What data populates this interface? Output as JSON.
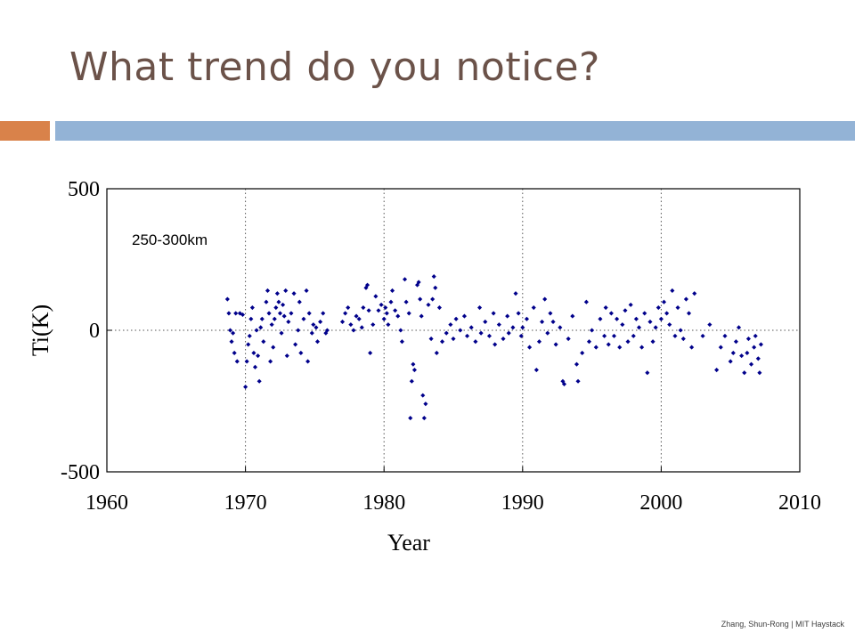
{
  "slide": {
    "title": "What trend do you notice?",
    "footer": "Zhang, Shun-Rong | MIT Haystack",
    "accent_orange": "#d9824a",
    "accent_blue": "#93b3d6",
    "title_color": "#6b5249"
  },
  "chart_data": {
    "type": "scatter",
    "xlabel": "Year",
    "ylabel": "Ti(K)",
    "annotation": "250-300km",
    "xlim": [
      1960,
      2010
    ],
    "ylim": [
      -500,
      500
    ],
    "xticks": [
      1960,
      1970,
      1980,
      1990,
      2000,
      2010
    ],
    "yticks": [
      -500,
      0,
      500
    ],
    "grid": "dotted vertical at decade ticks, dotted horizontal at 0",
    "marker_color": "#00008b",
    "points": [
      [
        1968.7,
        110
      ],
      [
        1968.8,
        60
      ],
      [
        1968.9,
        0
      ],
      [
        1969.0,
        -40
      ],
      [
        1969.1,
        -10
      ],
      [
        1969.2,
        -80
      ],
      [
        1969.3,
        60
      ],
      [
        1969.4,
        -110
      ],
      [
        1969.6,
        60
      ],
      [
        1969.8,
        55
      ],
      [
        1970.0,
        -200
      ],
      [
        1970.1,
        -110
      ],
      [
        1970.2,
        -50
      ],
      [
        1970.3,
        -20
      ],
      [
        1970.4,
        40
      ],
      [
        1970.5,
        80
      ],
      [
        1970.6,
        -80
      ],
      [
        1970.7,
        -130
      ],
      [
        1970.8,
        0
      ],
      [
        1970.9,
        -90
      ],
      [
        1971.0,
        -180
      ],
      [
        1971.1,
        10
      ],
      [
        1971.2,
        40
      ],
      [
        1971.3,
        -40
      ],
      [
        1971.5,
        100
      ],
      [
        1971.6,
        140
      ],
      [
        1971.7,
        60
      ],
      [
        1971.8,
        -110
      ],
      [
        1971.9,
        20
      ],
      [
        1972.0,
        -60
      ],
      [
        1972.1,
        40
      ],
      [
        1972.2,
        80
      ],
      [
        1972.3,
        130
      ],
      [
        1972.4,
        100
      ],
      [
        1972.5,
        60
      ],
      [
        1972.6,
        -10
      ],
      [
        1972.7,
        90
      ],
      [
        1972.8,
        50
      ],
      [
        1972.9,
        140
      ],
      [
        1973.0,
        -90
      ],
      [
        1973.1,
        30
      ],
      [
        1973.3,
        60
      ],
      [
        1973.5,
        130
      ],
      [
        1973.6,
        -50
      ],
      [
        1973.8,
        0
      ],
      [
        1973.9,
        100
      ],
      [
        1974.0,
        -80
      ],
      [
        1974.2,
        40
      ],
      [
        1974.4,
        140
      ],
      [
        1974.5,
        -110
      ],
      [
        1974.6,
        60
      ],
      [
        1974.8,
        -10
      ],
      [
        1974.9,
        20
      ],
      [
        1975.1,
        10
      ],
      [
        1975.2,
        -40
      ],
      [
        1975.4,
        30
      ],
      [
        1975.6,
        60
      ],
      [
        1975.8,
        -10
      ],
      [
        1975.9,
        0
      ],
      [
        1977.0,
        30
      ],
      [
        1977.2,
        60
      ],
      [
        1977.4,
        80
      ],
      [
        1977.6,
        20
      ],
      [
        1977.8,
        0
      ],
      [
        1978.0,
        50
      ],
      [
        1978.2,
        40
      ],
      [
        1978.4,
        10
      ],
      [
        1978.5,
        80
      ],
      [
        1978.7,
        150
      ],
      [
        1978.8,
        160
      ],
      [
        1978.9,
        70
      ],
      [
        1979.0,
        -80
      ],
      [
        1979.2,
        20
      ],
      [
        1979.4,
        120
      ],
      [
        1979.6,
        70
      ],
      [
        1979.8,
        90
      ],
      [
        1980.0,
        40
      ],
      [
        1980.1,
        80
      ],
      [
        1980.2,
        60
      ],
      [
        1980.3,
        20
      ],
      [
        1980.5,
        100
      ],
      [
        1980.6,
        140
      ],
      [
        1980.8,
        70
      ],
      [
        1981.0,
        50
      ],
      [
        1981.2,
        0
      ],
      [
        1981.3,
        -40
      ],
      [
        1981.5,
        180
      ],
      [
        1981.6,
        100
      ],
      [
        1981.8,
        60
      ],
      [
        1981.9,
        -310
      ],
      [
        1982.0,
        -180
      ],
      [
        1982.1,
        -120
      ],
      [
        1982.2,
        -140
      ],
      [
        1982.4,
        160
      ],
      [
        1982.5,
        170
      ],
      [
        1982.6,
        110
      ],
      [
        1982.7,
        50
      ],
      [
        1982.8,
        -230
      ],
      [
        1982.9,
        -310
      ],
      [
        1983.0,
        -260
      ],
      [
        1983.2,
        90
      ],
      [
        1983.4,
        -30
      ],
      [
        1983.5,
        110
      ],
      [
        1983.6,
        190
      ],
      [
        1983.7,
        150
      ],
      [
        1983.8,
        -80
      ],
      [
        1984.0,
        80
      ],
      [
        1984.2,
        -40
      ],
      [
        1984.5,
        -10
      ],
      [
        1984.8,
        20
      ],
      [
        1985.0,
        -30
      ],
      [
        1985.2,
        40
      ],
      [
        1985.5,
        0
      ],
      [
        1985.8,
        50
      ],
      [
        1986.0,
        -20
      ],
      [
        1986.3,
        10
      ],
      [
        1986.6,
        -40
      ],
      [
        1986.9,
        80
      ],
      [
        1987.0,
        -10
      ],
      [
        1987.3,
        30
      ],
      [
        1987.6,
        -20
      ],
      [
        1987.9,
        60
      ],
      [
        1988.0,
        -50
      ],
      [
        1988.3,
        20
      ],
      [
        1988.6,
        -30
      ],
      [
        1988.9,
        50
      ],
      [
        1989.0,
        -10
      ],
      [
        1989.3,
        10
      ],
      [
        1989.5,
        130
      ],
      [
        1989.7,
        60
      ],
      [
        1989.9,
        -20
      ],
      [
        1990.0,
        10
      ],
      [
        1990.3,
        40
      ],
      [
        1990.5,
        -60
      ],
      [
        1990.8,
        80
      ],
      [
        1991.0,
        -140
      ],
      [
        1991.2,
        -40
      ],
      [
        1991.4,
        30
      ],
      [
        1991.6,
        110
      ],
      [
        1991.8,
        -10
      ],
      [
        1992.0,
        60
      ],
      [
        1992.2,
        30
      ],
      [
        1992.4,
        -50
      ],
      [
        1992.7,
        10
      ],
      [
        1992.9,
        -180
      ],
      [
        1993.0,
        -190
      ],
      [
        1993.3,
        -30
      ],
      [
        1993.6,
        50
      ],
      [
        1993.9,
        -120
      ],
      [
        1994.0,
        -180
      ],
      [
        1994.3,
        -80
      ],
      [
        1994.6,
        100
      ],
      [
        1994.8,
        -40
      ],
      [
        1995.0,
        0
      ],
      [
        1995.3,
        -60
      ],
      [
        1995.6,
        40
      ],
      [
        1995.9,
        -20
      ],
      [
        1996.0,
        80
      ],
      [
        1996.2,
        -50
      ],
      [
        1996.4,
        60
      ],
      [
        1996.6,
        -20
      ],
      [
        1996.8,
        40
      ],
      [
        1997.0,
        -60
      ],
      [
        1997.2,
        20
      ],
      [
        1997.4,
        70
      ],
      [
        1997.6,
        -40
      ],
      [
        1997.8,
        90
      ],
      [
        1998.0,
        -20
      ],
      [
        1998.2,
        40
      ],
      [
        1998.4,
        10
      ],
      [
        1998.6,
        -60
      ],
      [
        1998.8,
        60
      ],
      [
        1999.0,
        -150
      ],
      [
        1999.2,
        30
      ],
      [
        1999.4,
        -40
      ],
      [
        1999.6,
        10
      ],
      [
        1999.8,
        80
      ],
      [
        2000.0,
        40
      ],
      [
        2000.2,
        100
      ],
      [
        2000.4,
        60
      ],
      [
        2000.6,
        20
      ],
      [
        2000.8,
        140
      ],
      [
        2001.0,
        -20
      ],
      [
        2001.2,
        80
      ],
      [
        2001.4,
        0
      ],
      [
        2001.6,
        -30
      ],
      [
        2001.8,
        110
      ],
      [
        2002.0,
        60
      ],
      [
        2002.2,
        -60
      ],
      [
        2002.4,
        130
      ],
      [
        2003.0,
        -20
      ],
      [
        2003.5,
        20
      ],
      [
        2004.0,
        -140
      ],
      [
        2004.3,
        -60
      ],
      [
        2004.6,
        -20
      ],
      [
        2005.0,
        -110
      ],
      [
        2005.2,
        -80
      ],
      [
        2005.4,
        -40
      ],
      [
        2005.6,
        10
      ],
      [
        2005.8,
        -90
      ],
      [
        2006.0,
        -150
      ],
      [
        2006.2,
        -80
      ],
      [
        2006.3,
        -30
      ],
      [
        2006.5,
        -120
      ],
      [
        2006.7,
        -60
      ],
      [
        2006.8,
        -20
      ],
      [
        2007.0,
        -100
      ],
      [
        2007.1,
        -150
      ],
      [
        2007.2,
        -50
      ]
    ]
  }
}
